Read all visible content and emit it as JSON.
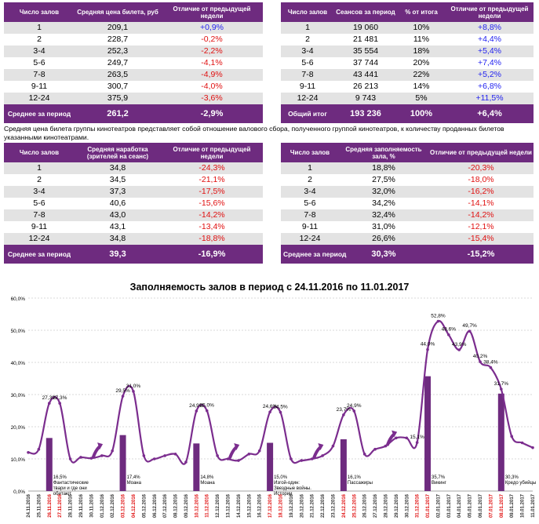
{
  "table1": {
    "headers": [
      "Число залов",
      "Средняя цена билета, руб",
      "Отличие от предыдущей недели"
    ],
    "rows": [
      [
        "1",
        "209,1",
        "+0,9%"
      ],
      [
        "2",
        "228,7",
        "-0,2%"
      ],
      [
        "3-4",
        "252,3",
        "-2,2%"
      ],
      [
        "5-6",
        "249,7",
        "-4,1%"
      ],
      [
        "7-8",
        "263,5",
        "-4,9%"
      ],
      [
        "9-11",
        "300,7",
        "-4,0%"
      ],
      [
        "12-24",
        "375,9",
        "-3,6%"
      ]
    ],
    "footer": [
      "Среднее за период",
      "261,2",
      "-2,9%"
    ]
  },
  "table2": {
    "headers": [
      "Число залов",
      "Сеансов за период",
      "% от итога",
      "Отличие от предыдущей недели"
    ],
    "rows": [
      [
        "1",
        "19 060",
        "10%",
        "+8,8%"
      ],
      [
        "2",
        "21 481",
        "11%",
        "+4,4%"
      ],
      [
        "3-4",
        "35 554",
        "18%",
        "+5,4%"
      ],
      [
        "5-6",
        "37 744",
        "20%",
        "+7,4%"
      ],
      [
        "7-8",
        "43 441",
        "22%",
        "+5,2%"
      ],
      [
        "9-11",
        "26 213",
        "14%",
        "+6,8%"
      ],
      [
        "12-24",
        "9 743",
        "5%",
        "+11,5%"
      ]
    ],
    "footer": [
      "Общий итог",
      "193 236",
      "100%",
      "+6,4%"
    ]
  },
  "note": "Средняя цена билета группы кинотеатров представляет собой отношение валового сбора, полученного группой кинотеатров, к количеству проданных билетов указанными кинотеатрами.",
  "table3": {
    "headers": [
      "Число залов",
      "Средняя наработка (зрителей на сеанс)",
      "Отличие от предыдущей недели"
    ],
    "rows": [
      [
        "1",
        "34,8",
        "-24,3%"
      ],
      [
        "2",
        "34,5",
        "-21,1%"
      ],
      [
        "3-4",
        "37,3",
        "-17,5%"
      ],
      [
        "5-6",
        "40,6",
        "-15,6%"
      ],
      [
        "7-8",
        "43,0",
        "-14,2%"
      ],
      [
        "9-11",
        "43,1",
        "-13,4%"
      ],
      [
        "12-24",
        "34,8",
        "-18,8%"
      ]
    ],
    "footer": [
      "Среднее за период",
      "39,3",
      "-16,9%"
    ]
  },
  "table4": {
    "headers": [
      "Число залов",
      "Средняя заполняемость зала, %",
      "Отличие от предыдущей недели"
    ],
    "rows": [
      [
        "1",
        "18,8%",
        "-20,3%"
      ],
      [
        "2",
        "27,5%",
        "-18,0%"
      ],
      [
        "3-4",
        "32,0%",
        "-16,2%"
      ],
      [
        "5-6",
        "34,2%",
        "-14,1%"
      ],
      [
        "7-8",
        "32,4%",
        "-14,2%"
      ],
      [
        "9-11",
        "31,0%",
        "-12,1%"
      ],
      [
        "12-24",
        "26,6%",
        "-15,4%"
      ]
    ],
    "footer": [
      "Среднее за период",
      "30,3%",
      "-15,2%"
    ]
  },
  "chart_data": {
    "type": "line",
    "title": "Заполняемость залов в период с 24.11.2016 по 11.01.2017",
    "ylim": [
      0,
      60
    ],
    "yticks": [
      "0,0%",
      "10,0%",
      "20,0%",
      "30,0%",
      "40,0%",
      "50,0%",
      "60,0%"
    ],
    "dates": [
      "24.11.2016",
      "25.11.2016",
      "26.11.2016",
      "27.11.2016",
      "28.11.2016",
      "29.11.2016",
      "30.11.2016",
      "01.12.2016",
      "02.12.2016",
      "03.12.2016",
      "04.12.2016",
      "05.12.2016",
      "06.12.2016",
      "07.12.2016",
      "08.12.2016",
      "09.12.2016",
      "10.12.2016",
      "11.12.2016",
      "12.12.2016",
      "13.12.2016",
      "14.12.2016",
      "15.12.2016",
      "16.12.2016",
      "17.12.2016",
      "18.12.2016",
      "19.12.2016",
      "20.12.2016",
      "21.12.2016",
      "22.12.2016",
      "23.12.2016",
      "24.12.2016",
      "25.12.2016",
      "26.12.2016",
      "27.12.2016",
      "28.12.2016",
      "29.12.2016",
      "30.12.2016",
      "31.12.2016",
      "01.01.2017",
      "02.01.2017",
      "03.01.2017",
      "04.01.2017",
      "05.01.2017",
      "06.01.2017",
      "07.01.2017",
      "08.01.2017",
      "09.01.2017",
      "10.01.2017",
      "11.01.2017"
    ],
    "weekend_indices": [
      2,
      3,
      9,
      10,
      16,
      17,
      23,
      24,
      30,
      31,
      37,
      38,
      44,
      45
    ],
    "values": [
      12,
      13,
      27.3,
      27.3,
      10,
      10.5,
      10.2,
      11,
      12.5,
      29.5,
      31,
      11,
      10,
      11,
      11.5,
      9,
      24.9,
      25,
      11,
      10,
      9.5,
      11.5,
      12.5,
      24.6,
      24.5,
      10,
      9.5,
      10,
      11,
      14,
      23.7,
      24.9,
      11.5,
      13,
      14,
      16.5,
      16.5,
      15.1,
      44,
      52.8,
      48.6,
      43.9,
      49.7,
      40.2,
      38.4,
      31.7,
      17,
      15,
      13.5
    ],
    "point_labels": [
      {
        "i": 2,
        "text": "27,3%"
      },
      {
        "i": 3,
        "text": "27,3%"
      },
      {
        "i": 9,
        "text": "29,5%"
      },
      {
        "i": 10,
        "text": "31,0%"
      },
      {
        "i": 16,
        "text": "24,9%"
      },
      {
        "i": 17,
        "text": "25,0%"
      },
      {
        "i": 23,
        "text": "24,6%"
      },
      {
        "i": 24,
        "text": "24,5%"
      },
      {
        "i": 30,
        "text": "23,7%"
      },
      {
        "i": 31,
        "text": "24,9%"
      },
      {
        "i": 37,
        "text": "15,1%"
      },
      {
        "i": 38,
        "text": "44,0%"
      },
      {
        "i": 39,
        "text": "52,8%"
      },
      {
        "i": 40,
        "text": "48,6%"
      },
      {
        "i": 41,
        "text": "43,9%"
      },
      {
        "i": 42,
        "text": "49,7%"
      },
      {
        "i": 43,
        "text": "40,2%"
      },
      {
        "i": 44,
        "text": "38,4%"
      },
      {
        "i": 45,
        "text": "31,7%"
      }
    ],
    "bars": [
      {
        "i": 2,
        "value": 16.5,
        "label": "16,5%",
        "film": "Фантастические твари и где они обитают"
      },
      {
        "i": 9,
        "value": 17.4,
        "label": "17,4%",
        "film": "Моана"
      },
      {
        "i": 16,
        "value": 14.8,
        "label": "14,8%",
        "film": "Моана"
      },
      {
        "i": 23,
        "value": 15.0,
        "label": "15,0%",
        "film": "Изгой-один: Звездные войны. Истории"
      },
      {
        "i": 30,
        "value": 16.1,
        "label": "16,1%",
        "film": "Пассажиры"
      },
      {
        "i": 38,
        "value": 35.7,
        "label": "35,7%",
        "film": "Викинг"
      },
      {
        "i": 45,
        "value": 30.3,
        "label": "30,3%",
        "film": "Кредо убийцы"
      }
    ],
    "arrows_at": [
      6,
      19,
      27,
      34
    ],
    "colors": {
      "line": "#7b2d8e",
      "bar": "#6e2b7f",
      "weekend": "#e01010",
      "grid": "#cccccc",
      "arrow": "#7b2d8e"
    }
  }
}
